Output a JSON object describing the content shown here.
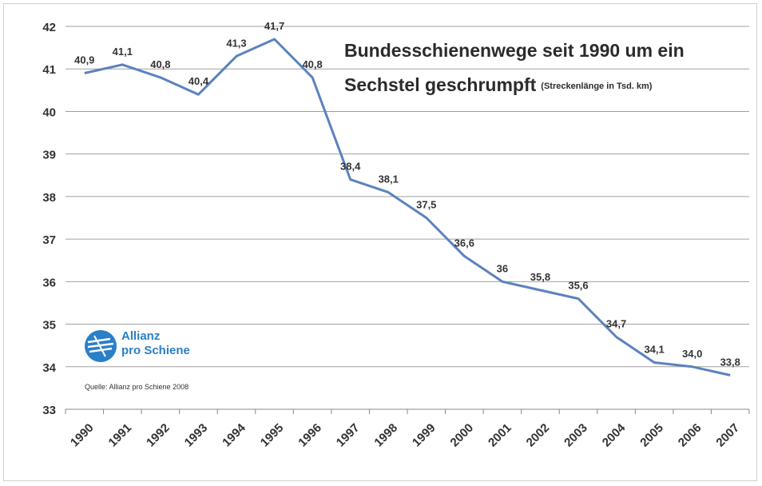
{
  "chart_data": {
    "type": "line",
    "title": "Bundesschienenwege seit 1990 um ein Sechstel geschrumpft",
    "title_line1": "Bundesschienenwege seit 1990 um ein",
    "title_line2": "Sechstel geschrumpft",
    "subtitle": "(Streckenlänge in Tsd. km)",
    "xlabel": "",
    "ylabel": "",
    "categories": [
      "1990",
      "1991",
      "1992",
      "1993",
      "1994",
      "1995",
      "1996",
      "1997",
      "1998",
      "1999",
      "2000",
      "2001",
      "2002",
      "2003",
      "2004",
      "2005",
      "2006",
      "2007"
    ],
    "series": [
      {
        "values": [
          40.9,
          41.1,
          40.8,
          40.4,
          41.3,
          41.7,
          40.8,
          38.4,
          38.1,
          37.5,
          36.6,
          36.0,
          35.8,
          35.6,
          34.7,
          34.1,
          34.0,
          33.8
        ],
        "labels": [
          "40,9",
          "41,1",
          "40,8",
          "40,4",
          "41,3",
          "41,7",
          "40,8",
          "38,4",
          "38,1",
          "37,5",
          "36,6",
          "36",
          "35,8",
          "35,6",
          "34,7",
          "34,1",
          "34,0",
          "33,8"
        ],
        "color": "#5b82be"
      }
    ],
    "ylim": [
      33,
      42
    ],
    "yticks": [
      "33",
      "34",
      "35",
      "36",
      "37",
      "38",
      "39",
      "40",
      "41",
      "42"
    ],
    "grid": true,
    "legend": "none"
  },
  "logo": {
    "line1": "Allianz",
    "line2": "pro Schiene",
    "color": "#2a7fc9"
  },
  "source": "Quelle: Allianz pro Schiene 2008"
}
